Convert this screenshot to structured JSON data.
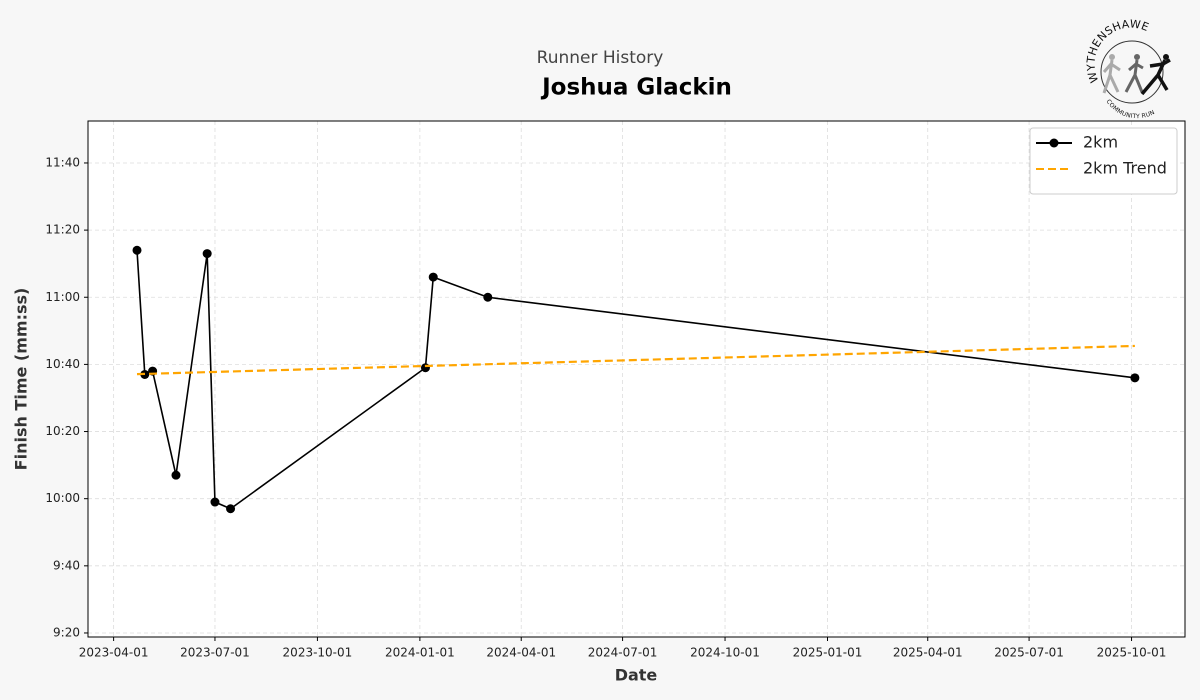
{
  "chart_data": {
    "type": "line",
    "subtitle": "Runner History",
    "title": "Joshua Glackin",
    "logo": {
      "top": "WYTHENSHAWE",
      "bottom": "COMMUNITY RUN"
    },
    "xlabel": "Date",
    "ylabel": "Finish Time (mm:ss)",
    "xlim": [
      "2023-03-09",
      "2025-11-18"
    ],
    "xticks": [
      "2023-04-01",
      "2023-07-01",
      "2023-10-01",
      "2024-01-01",
      "2024-04-01",
      "2024-07-01",
      "2024-10-01",
      "2025-01-01",
      "2025-04-01",
      "2025-07-01",
      "2025-10-01"
    ],
    "ylim": [
      558.8,
      712.5
    ],
    "yticks": [
      {
        "value": 560,
        "label": "9:20"
      },
      {
        "value": 580,
        "label": "9:40"
      },
      {
        "value": 600,
        "label": "10:00"
      },
      {
        "value": 620,
        "label": "10:20"
      },
      {
        "value": 640,
        "label": "10:40"
      },
      {
        "value": 660,
        "label": "11:00"
      },
      {
        "value": 680,
        "label": "11:20"
      },
      {
        "value": 700,
        "label": "11:40"
      }
    ],
    "grid": true,
    "legend": "upper right",
    "series": [
      {
        "name": "2km",
        "color": "#000000",
        "dashed": false,
        "markers": true,
        "x": [
          "2023-04-22",
          "2023-04-29",
          "2023-05-06",
          "2023-05-27",
          "2023-06-24",
          "2023-07-01",
          "2023-07-15",
          "2024-01-06",
          "2024-01-13",
          "2024-03-02",
          "2025-10-04"
        ],
        "values": [
          674,
          637,
          638,
          607,
          673,
          599,
          597,
          639,
          666,
          660,
          636
        ]
      },
      {
        "name": "2km Trend",
        "color": "#ffa500",
        "dashed": true,
        "markers": false,
        "x": [
          "2023-04-22",
          "2025-10-04"
        ],
        "values": [
          637.1,
          645.5
        ]
      }
    ]
  }
}
